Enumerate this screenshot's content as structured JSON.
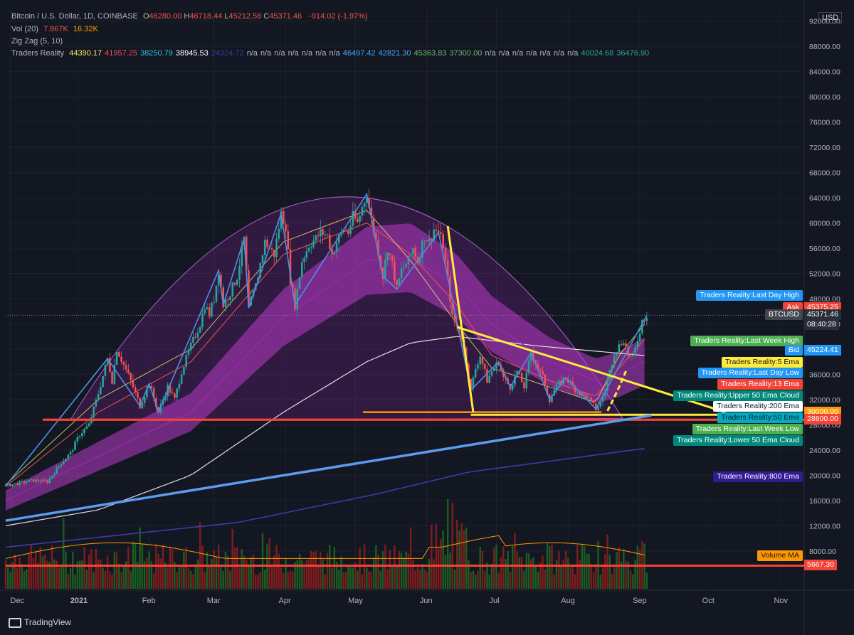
{
  "header": {
    "symbol": "Bitcoin / U.S. Dollar, 1D, COINBASE",
    "ohlc": [
      {
        "k": "O",
        "v": "46280.00"
      },
      {
        "k": "H",
        "v": "46718.44"
      },
      {
        "k": "L",
        "v": "45212.58"
      },
      {
        "k": "C",
        "v": "45371.46"
      }
    ],
    "change": "-914.02 (-1.97%)",
    "vol_label": "Vol (20)",
    "vol_value": "7.867K",
    "vol_ma": "16.32K",
    "zigzag": "Zig Zag (5, 10)",
    "tr_label": "Traders Reality",
    "tr_values": [
      {
        "v": "44390.17",
        "c": "#f5e663"
      },
      {
        "v": "41957.25",
        "c": "#ef5350"
      },
      {
        "v": "38250.79",
        "c": "#26c6da"
      },
      {
        "v": "38945.53",
        "c": "#ffffff"
      },
      {
        "v": "24324.72",
        "c": "#3f3a9a"
      },
      {
        "v": "n/a",
        "c": "#b2b5be"
      },
      {
        "v": "n/a",
        "c": "#b2b5be"
      },
      {
        "v": "n/a",
        "c": "#b2b5be"
      },
      {
        "v": "n/a",
        "c": "#b2b5be"
      },
      {
        "v": "n/a",
        "c": "#b2b5be"
      },
      {
        "v": "n/a",
        "c": "#b2b5be"
      },
      {
        "v": "n/a",
        "c": "#b2b5be"
      },
      {
        "v": "46497.42",
        "c": "#42a5f5"
      },
      {
        "v": "42821.30",
        "c": "#42a5f5"
      },
      {
        "v": "45363.83",
        "c": "#66bb6a"
      },
      {
        "v": "37300.00",
        "c": "#66bb6a"
      },
      {
        "v": "n/a",
        "c": "#b2b5be"
      },
      {
        "v": "n/a",
        "c": "#b2b5be"
      },
      {
        "v": "n/a",
        "c": "#b2b5be"
      },
      {
        "v": "n/a",
        "c": "#b2b5be"
      },
      {
        "v": "n/a",
        "c": "#b2b5be"
      },
      {
        "v": "n/a",
        "c": "#b2b5be"
      },
      {
        "v": "n/a",
        "c": "#b2b5be"
      },
      {
        "v": "40024.68",
        "c": "#26a69a"
      },
      {
        "v": "36476.90",
        "c": "#26a69a"
      }
    ]
  },
  "currency": "USD",
  "brand": "TradingView",
  "chart_data": {
    "type": "line",
    "title": "Bitcoin / U.S. Dollar, 1D, COINBASE",
    "x_ticks": [
      "Dec",
      "2021",
      "Feb",
      "Mar",
      "Apr",
      "May",
      "Jun",
      "Jul",
      "Aug",
      "Sep",
      "Oct",
      "Nov"
    ],
    "y_ticks": [
      "92000.00",
      "88000.00",
      "84000.00",
      "80000.00",
      "76000.00",
      "72000.00",
      "68000.00",
      "64000.00",
      "60000.00",
      "56000.00",
      "52000.00",
      "48000.00",
      "44000.00",
      "40000.00",
      "36000.00",
      "32000.00",
      "28000.00",
      "24000.00",
      "20000.00",
      "16000.00",
      "12000.00",
      "8000.00"
    ],
    "ylim": [
      2000,
      94000
    ],
    "grid": true,
    "price_path": [
      [
        0,
        18300
      ],
      [
        6,
        18800
      ],
      [
        12,
        19200
      ],
      [
        18,
        19000
      ],
      [
        24,
        22000
      ],
      [
        28,
        23500
      ],
      [
        32,
        26500
      ],
      [
        36,
        28000
      ],
      [
        40,
        33000
      ],
      [
        44,
        38500
      ],
      [
        46,
        35000
      ],
      [
        48,
        40000
      ],
      [
        54,
        35000
      ],
      [
        58,
        31000
      ],
      [
        62,
        34500
      ],
      [
        66,
        30000
      ],
      [
        70,
        34000
      ],
      [
        73,
        32000
      ],
      [
        76,
        36500
      ],
      [
        80,
        40500
      ],
      [
        84,
        44000
      ],
      [
        86,
        47000
      ],
      [
        88,
        45500
      ],
      [
        90,
        48000
      ],
      [
        92,
        52500
      ],
      [
        94,
        47000
      ],
      [
        97,
        49000
      ],
      [
        100,
        51500
      ],
      [
        103,
        57500
      ],
      [
        105,
        46500
      ],
      [
        108,
        50000
      ],
      [
        112,
        57000
      ],
      [
        116,
        55000
      ],
      [
        119,
        61500
      ],
      [
        121,
        59500
      ],
      [
        123,
        51000
      ],
      [
        125,
        47000
      ],
      [
        128,
        54000
      ],
      [
        131,
        56500
      ],
      [
        134,
        57500
      ],
      [
        136,
        58500
      ],
      [
        139,
        58000
      ],
      [
        141,
        55000
      ],
      [
        143,
        57000
      ],
      [
        146,
        59000
      ],
      [
        148,
        58500
      ],
      [
        150,
        61000
      ],
      [
        152,
        60000
      ],
      [
        154,
        62500
      ],
      [
        156,
        64600
      ],
      [
        158,
        60500
      ],
      [
        161,
        55500
      ],
      [
        163,
        51500
      ],
      [
        165,
        56000
      ],
      [
        167,
        53500
      ],
      [
        169,
        49500
      ],
      [
        171,
        52500
      ],
      [
        174,
        54000
      ],
      [
        176,
        56000
      ],
      [
        178,
        54000
      ],
      [
        181,
        58000
      ],
      [
        183,
        57000
      ],
      [
        185,
        59000
      ],
      [
        187,
        58500
      ],
      [
        189,
        56500
      ],
      [
        191,
        51000
      ],
      [
        193,
        45000
      ],
      [
        195,
        43500
      ],
      [
        197,
        42000
      ],
      [
        199,
        38000
      ],
      [
        201,
        33500
      ],
      [
        203,
        37000
      ],
      [
        205,
        39000
      ],
      [
        208,
        35000
      ],
      [
        210,
        36500
      ],
      [
        213,
        38000
      ],
      [
        215,
        35500
      ],
      [
        218,
        34000
      ],
      [
        221,
        36500
      ],
      [
        224,
        34000
      ],
      [
        227,
        39500
      ],
      [
        230,
        37000
      ],
      [
        232,
        35500
      ],
      [
        235,
        32000
      ],
      [
        237,
        33500
      ],
      [
        239,
        34500
      ],
      [
        242,
        35500
      ],
      [
        245,
        34000
      ],
      [
        248,
        33000
      ],
      [
        251,
        32500
      ],
      [
        253,
        31500
      ],
      [
        255,
        30500
      ],
      [
        257,
        31500
      ],
      [
        259,
        33500
      ],
      [
        261,
        36500
      ],
      [
        263,
        39500
      ],
      [
        265,
        40500
      ],
      [
        267,
        41500
      ],
      [
        269,
        39000
      ],
      [
        271,
        38500
      ],
      [
        273,
        41500
      ],
      [
        275,
        44500
      ],
      [
        277,
        45400
      ]
    ],
    "ema5": [
      [
        0,
        18500
      ],
      [
        40,
        32000
      ],
      [
        80,
        40000
      ],
      [
        120,
        57000
      ],
      [
        156,
        62000
      ],
      [
        175,
        54000
      ],
      [
        195,
        44000
      ],
      [
        210,
        37000
      ],
      [
        235,
        34000
      ],
      [
        255,
        31500
      ],
      [
        265,
        39000
      ],
      [
        277,
        44390
      ]
    ],
    "ema13": [
      [
        0,
        18200
      ],
      [
        40,
        30000
      ],
      [
        80,
        38000
      ],
      [
        120,
        55000
      ],
      [
        156,
        60000
      ],
      [
        175,
        55000
      ],
      [
        195,
        47000
      ],
      [
        210,
        39000
      ],
      [
        235,
        35000
      ],
      [
        255,
        32500
      ],
      [
        265,
        37000
      ],
      [
        277,
        41957
      ]
    ],
    "ema50": [
      [
        0,
        16000
      ],
      [
        40,
        23000
      ],
      [
        80,
        30000
      ],
      [
        120,
        45000
      ],
      [
        156,
        54000
      ],
      [
        175,
        54500
      ],
      [
        195,
        50000
      ],
      [
        210,
        44000
      ],
      [
        235,
        38000
      ],
      [
        255,
        35000
      ],
      [
        265,
        36000
      ],
      [
        277,
        38250
      ]
    ],
    "ema200": [
      [
        0,
        12000
      ],
      [
        40,
        14500
      ],
      [
        80,
        20000
      ],
      [
        120,
        30000
      ],
      [
        156,
        38000
      ],
      [
        175,
        41000
      ],
      [
        195,
        42000
      ],
      [
        230,
        40500
      ],
      [
        277,
        38945
      ]
    ],
    "ema800": [
      [
        0,
        8600
      ],
      [
        100,
        12500
      ],
      [
        160,
        17000
      ],
      [
        200,
        20500
      ],
      [
        277,
        24300
      ]
    ],
    "zigzag": [
      [
        0,
        18300
      ],
      [
        44,
        38500
      ],
      [
        58,
        31000
      ],
      [
        62,
        34500
      ],
      [
        66,
        30000
      ],
      [
        92,
        52500
      ],
      [
        94,
        47000
      ],
      [
        103,
        57500
      ],
      [
        105,
        46500
      ],
      [
        119,
        61500
      ],
      [
        125,
        47000
      ],
      [
        156,
        64600
      ],
      [
        163,
        51500
      ],
      [
        169,
        49500
      ],
      [
        187,
        58500
      ],
      [
        201,
        33500
      ],
      [
        213,
        38000
      ],
      [
        218,
        34000
      ],
      [
        227,
        39500
      ],
      [
        235,
        32000
      ],
      [
        242,
        35500
      ],
      [
        255,
        30500
      ],
      [
        277,
        45400
      ]
    ],
    "horizontal_levels": [
      {
        "name": "30000.00",
        "value": 30000,
        "color": "#ff9800"
      },
      {
        "name": "28800.00",
        "value": 28800,
        "color": "#f44336"
      },
      {
        "name": "5667.30",
        "value": 5667,
        "color": "#f44336"
      }
    ],
    "level_labels": [
      {
        "text": "Traders Reality:Last Day High",
        "value": 48500,
        "bg": "#2196f3",
        "fg": "#ffffff"
      },
      {
        "text": "Ask",
        "value": 46500,
        "bg": "#f44336",
        "fg": "#ffffff",
        "tag": "45375.25",
        "tag_bg": "#f44336"
      },
      {
        "text": "BTCUSD",
        "value": 45371,
        "bg": "#434651",
        "fg": "#ffffff",
        "tag": "45371.46",
        "tag_bg": "#2a2e39",
        "tag2": "08:40:28"
      },
      {
        "text": "Traders Reality:Last Week High",
        "value": 41200,
        "bg": "#4caf50",
        "fg": "#ffffff"
      },
      {
        "text": "Bid",
        "value": 39800,
        "bg": "#2196f3",
        "fg": "#ffffff",
        "tag": "45224.41",
        "tag_bg": "#2196f3"
      },
      {
        "text": "Traders Reality:5 Ema",
        "value": 37900,
        "bg": "#ffeb3b",
        "fg": "#131722"
      },
      {
        "text": "Traders Reality:Last Day Low",
        "value": 36200,
        "bg": "#2196f3",
        "fg": "#ffffff"
      },
      {
        "text": "Traders Reality:13 Ema",
        "value": 34400,
        "bg": "#f44336",
        "fg": "#ffffff"
      },
      {
        "text": "Traders Reality:Upper 50 Ema Cloud",
        "value": 32600,
        "bg": "#00897b",
        "fg": "#ffffff"
      },
      {
        "text": "Traders Reality:200 Ema",
        "value": 30900,
        "bg": "#ffffff",
        "fg": "#131722"
      },
      {
        "text": "Traders Reality:50 Ema",
        "value": 29100,
        "bg": "#00acc1",
        "fg": "#131722"
      },
      {
        "text": "Traders Reality:Last Week Low",
        "value": 27300,
        "bg": "#4caf50",
        "fg": "#ffffff"
      },
      {
        "text": "Traders Reality:Lower 50 Ema Cloud",
        "value": 25500,
        "bg": "#00897b",
        "fg": "#ffffff"
      },
      {
        "text": "Traders Reality:800 Ema",
        "value": 19700,
        "bg": "#311b92",
        "fg": "#ffffff"
      },
      {
        "text": "Volume MA",
        "value": 7200,
        "bg": "#ff9800",
        "fg": "#131722"
      }
    ],
    "trendlines": [
      {
        "from": [
          191,
          59500
        ],
        "to": [
          202,
          30000
        ],
        "color": "#ffeb3b"
      },
      {
        "from": [
          195,
          43500
        ],
        "to": [
          311,
          30000
        ],
        "color": "#ffeb3b"
      },
      {
        "from": [
          201,
          29600
        ],
        "to": [
          311,
          29600
        ],
        "color": "#ffeb3b"
      },
      {
        "from": [
          0,
          12800
        ],
        "to": [
          279,
          29500
        ],
        "color": "#5b9cf0"
      }
    ]
  }
}
